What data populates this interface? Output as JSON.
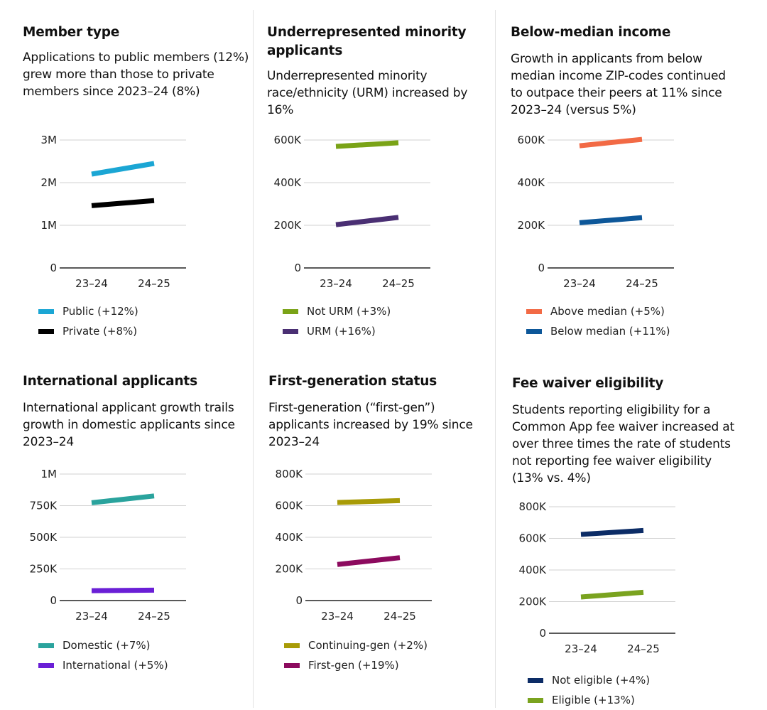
{
  "chart_data": [
    {
      "type": "line",
      "title": "Member type",
      "subtitle": "Applications to public members (12%) grew more than those to private members since 2023–24 (8%)",
      "categories": [
        "23–24",
        "24–25"
      ],
      "ylim": [
        0,
        3000000
      ],
      "yticks": [
        0,
        1000000,
        2000000,
        3000000
      ],
      "ytick_labels": [
        "0",
        "1M",
        "2M",
        "3M"
      ],
      "grid": true,
      "series": [
        {
          "name": "Public (+12%)",
          "color": "#1ba6d4",
          "values": [
            2200000,
            2450000
          ]
        },
        {
          "name": "Private (+8%)",
          "color": "#000000",
          "values": [
            1460000,
            1580000
          ]
        }
      ]
    },
    {
      "type": "line",
      "title": "Underrepresented minority applicants",
      "subtitle": "Underrepresented minority race/ethnicity (URM) increased by 16%",
      "categories": [
        "23–24",
        "24–25"
      ],
      "ylim": [
        0,
        600000
      ],
      "yticks": [
        0,
        200000,
        400000,
        600000
      ],
      "ytick_labels": [
        "0",
        "200K",
        "400K",
        "600K"
      ],
      "grid": true,
      "series": [
        {
          "name": "Not URM (+3%)",
          "color": "#7aa317",
          "values": [
            570000,
            587000
          ]
        },
        {
          "name": "URM (+16%)",
          "color": "#4a2f73",
          "values": [
            203000,
            237000
          ]
        }
      ]
    },
    {
      "type": "line",
      "title": "Below-median income",
      "subtitle": "Growth in applicants from below median income ZIP-codes continued to outpace their peers at 11% since 2023–24 (versus 5%)",
      "categories": [
        "23–24",
        "24–25"
      ],
      "ylim": [
        0,
        600000
      ],
      "yticks": [
        0,
        200000,
        400000,
        600000
      ],
      "ytick_labels": [
        "0",
        "200K",
        "400K",
        "600K"
      ],
      "grid": true,
      "series": [
        {
          "name": "Above median (+5%)",
          "color": "#f26a45",
          "values": [
            573000,
            603000
          ]
        },
        {
          "name": "Below median (+11%)",
          "color": "#0d5799",
          "values": [
            212000,
            236000
          ]
        }
      ]
    },
    {
      "type": "line",
      "title": "International applicants",
      "subtitle": "International applicant growth trails growth in domestic applicants since 2023–24",
      "categories": [
        "23–24",
        "24–25"
      ],
      "ylim": [
        0,
        1000000
      ],
      "yticks": [
        0,
        250000,
        500000,
        750000,
        1000000
      ],
      "ytick_labels": [
        "0",
        "250K",
        "500K",
        "750K",
        "1M"
      ],
      "grid": true,
      "series": [
        {
          "name": "Domestic (+7%)",
          "color": "#2aa39d",
          "values": [
            773000,
            827000
          ]
        },
        {
          "name": "International (+5%)",
          "color": "#6a1fd6",
          "values": [
            78000,
            82000
          ]
        }
      ]
    },
    {
      "type": "line",
      "title": "First-generation status",
      "subtitle": "First-generation (“first-gen”) applicants increased by 19% since 2023–24",
      "categories": [
        "23–24",
        "24–25"
      ],
      "ylim": [
        0,
        800000
      ],
      "yticks": [
        0,
        200000,
        400000,
        600000,
        800000
      ],
      "ytick_labels": [
        "0",
        "200K",
        "400K",
        "600K",
        "800K"
      ],
      "grid": true,
      "series": [
        {
          "name": "Continuing-gen (+2%)",
          "color": "#a89b07",
          "values": [
            620000,
            632000
          ]
        },
        {
          "name": "First-gen (+19%)",
          "color": "#8c0a5e",
          "values": [
            228000,
            271000
          ]
        }
      ]
    },
    {
      "type": "line",
      "title": "Fee waiver eligibility",
      "subtitle": "Students reporting eligibility for a Common App fee waiver increased at over three times the rate of students not reporting fee waiver eligibility (13% vs. 4%)",
      "categories": [
        "23–24",
        "24–25"
      ],
      "ylim": [
        0,
        800000
      ],
      "yticks": [
        0,
        200000,
        400000,
        600000,
        800000
      ],
      "ytick_labels": [
        "0",
        "200K",
        "400K",
        "600K",
        "800K"
      ],
      "grid": true,
      "series": [
        {
          "name": "Not eligible (+4%)",
          "color": "#0c2c66",
          "values": [
            625000,
            650000
          ]
        },
        {
          "name": "Eligible (+13%)",
          "color": "#7aa31f",
          "values": [
            229000,
            259000
          ]
        }
      ]
    }
  ]
}
